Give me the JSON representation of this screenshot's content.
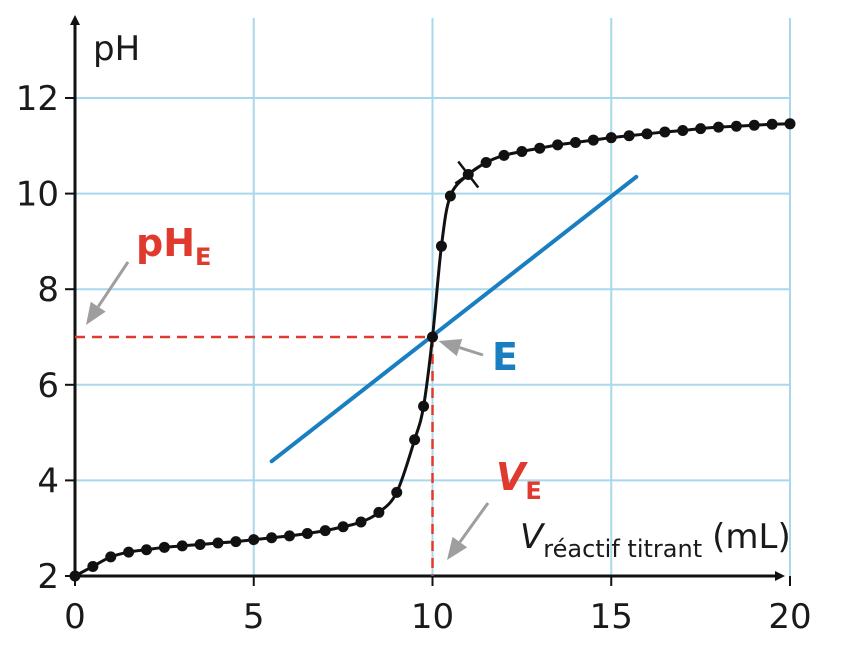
{
  "chart_data": {
    "type": "scatter",
    "title": "",
    "xlabel": {
      "main": "V",
      "sub": "réactif titrant",
      "unit": "(mL)"
    },
    "ylabel": "pH",
    "xlim": [
      0,
      20
    ],
    "ylim": [
      2,
      13.5
    ],
    "x_ticks": [
      "0",
      "5",
      "10",
      "15",
      "20"
    ],
    "y_ticks": [
      "2",
      "4",
      "6",
      "8",
      "10",
      "12"
    ],
    "grid": true,
    "grid_color": "#a9d8ec",
    "curve_color": "#111111",
    "tangent_color": "#1a7fc1",
    "annotation_color": "#e03a2f",
    "arrow_color": "#9e9e9e",
    "series": [
      {
        "points": [
          [
            0,
            2.0
          ],
          [
            0.5,
            2.2
          ],
          [
            1.0,
            2.4
          ],
          [
            1.5,
            2.5
          ],
          [
            2.0,
            2.55
          ],
          [
            2.5,
            2.6
          ],
          [
            3.0,
            2.63
          ],
          [
            3.5,
            2.66
          ],
          [
            4.0,
            2.69
          ],
          [
            4.5,
            2.72
          ],
          [
            5.0,
            2.76
          ],
          [
            5.5,
            2.8
          ],
          [
            6.0,
            2.84
          ],
          [
            6.5,
            2.89
          ],
          [
            7.0,
            2.95
          ],
          [
            7.5,
            3.03
          ],
          [
            8.0,
            3.13
          ],
          [
            8.5,
            3.33
          ],
          [
            9.0,
            3.75
          ],
          [
            9.5,
            4.85
          ],
          [
            9.75,
            5.55
          ],
          [
            10.0,
            7.0
          ],
          [
            10.25,
            8.9
          ],
          [
            10.5,
            9.95
          ],
          [
            11.0,
            10.4
          ],
          [
            11.5,
            10.65
          ],
          [
            12.0,
            10.8
          ],
          [
            12.5,
            10.88
          ],
          [
            13.0,
            10.95
          ],
          [
            13.5,
            11.02
          ],
          [
            14.0,
            11.07
          ],
          [
            14.5,
            11.12
          ],
          [
            15.0,
            11.17
          ],
          [
            15.5,
            11.21
          ],
          [
            16.0,
            11.25
          ],
          [
            16.5,
            11.29
          ],
          [
            17.0,
            11.32
          ],
          [
            17.5,
            11.36
          ],
          [
            18.0,
            11.39
          ],
          [
            18.5,
            11.41
          ],
          [
            19.0,
            11.43
          ],
          [
            19.5,
            11.45
          ],
          [
            20.0,
            11.46
          ]
        ]
      }
    ],
    "tangent_line": {
      "from": [
        5.5,
        4.4
      ],
      "to": [
        15.7,
        10.35
      ]
    },
    "cross_marker": [
      11.0,
      10.4
    ],
    "equivalence_point": {
      "label": "E",
      "x": 10,
      "y": 7
    },
    "annotations": {
      "phe": {
        "main": "pH",
        "sub": "E"
      },
      "ve": {
        "main": "V",
        "sub": "E"
      }
    }
  }
}
